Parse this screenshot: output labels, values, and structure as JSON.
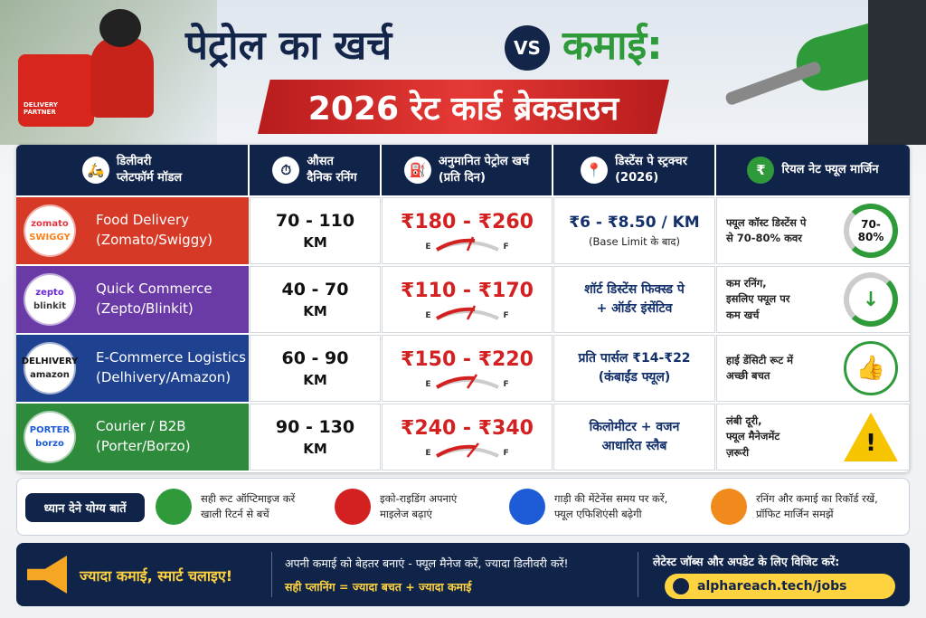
{
  "header": {
    "title_left": "पेट्रोल का खर्च",
    "vs": "VS",
    "title_right": "कमाई:",
    "subtitle": "2026 रेट कार्ड ब्रेकडाउन",
    "bag_label": "DELIVERY PARTNER"
  },
  "table": {
    "headers": [
      {
        "lines": [
          "डिलीवरी",
          "प्लेटफॉर्म मॉडल"
        ]
      },
      {
        "lines": [
          "औसत",
          "दैनिक रनिंग"
        ]
      },
      {
        "lines": [
          "अनुमानित पेट्रोल खर्च",
          "(प्रति दिन)"
        ]
      },
      {
        "lines": [
          "डिस्टेंस पे स्ट्रक्चर",
          "(2026)"
        ]
      },
      {
        "lines": [
          "रियल नेट फ्यूल मार्जिन"
        ]
      }
    ],
    "gauge_labels": [
      "E",
      "F"
    ],
    "rows": [
      {
        "logos": [
          "zomato",
          "SWIGGY"
        ],
        "category": "Food Delivery",
        "platforms": "(Zomato/Swiggy)",
        "running": [
          "70 - 110",
          "KM"
        ],
        "cost": "₹180 - ₹260",
        "pay": [
          "₹6 - ₹8.50 / KM",
          "(Base Limit के बाद)"
        ],
        "margin": [
          "फ्यूल कॉस्ट डिस्टेंस पे",
          "से 70-80% कवर"
        ],
        "badge": "70-80%"
      },
      {
        "logos": [
          "zepto",
          "blinkit"
        ],
        "category": "Quick Commerce",
        "platforms": "(Zepto/Blinkit)",
        "running": [
          "40 - 70",
          "KM"
        ],
        "cost": "₹110 - ₹170",
        "pay": [
          "शॉर्ट डिस्टेंस फिक्स्ड पे",
          "+ ऑर्डर इंसेंटिव"
        ],
        "margin": [
          "कम रनिंग,",
          "इसलिए फ्यूल पर",
          "कम खर्च"
        ]
      },
      {
        "logos": [
          "DELHIVERY",
          "amazon"
        ],
        "category": "E-Commerce Logistics",
        "platforms": "(Delhivery/Amazon)",
        "running": [
          "60 - 90",
          "KM"
        ],
        "cost": "₹150 - ₹220",
        "pay": [
          "प्रति पार्सल ₹14-₹22",
          "(कंबाईंड फ्यूल)"
        ],
        "margin": [
          "हाई डेंसिटी रूट में",
          "अच्छी बचत"
        ]
      },
      {
        "logos": [
          "PORTER",
          "borzo"
        ],
        "category": "Courier / B2B",
        "platforms": "(Porter/Borzo)",
        "running": [
          "90 - 130",
          "KM"
        ],
        "cost": "₹240 - ₹340",
        "pay": [
          "किलोमीटर + वजन",
          "आधारित स्लैब"
        ],
        "margin": [
          "लंबी दूरी,",
          "फ्यूल मैनेजमेंट",
          "ज़रूरी"
        ]
      }
    ]
  },
  "tips": {
    "label": "ध्यान देने योग्य बातें",
    "items": [
      {
        "lines": [
          "सही रूट ऑप्टिमाइज करें",
          "खाली रिटर्न से बचें"
        ]
      },
      {
        "lines": [
          "इको-राइडिंग अपनाएं",
          "माइलेज बढ़ाएं"
        ]
      },
      {
        "lines": [
          "गाड़ी की मेंटेनेंस समय पर करें,",
          "फ्यूल एफिशिएंसी बढ़ेगी"
        ]
      },
      {
        "lines": [
          "रनिंग और कमाई का रिकॉर्ड रखें,",
          "प्रॉफिट मार्जिन समझें"
        ]
      }
    ]
  },
  "footer": {
    "slogan": "ज्यादा कमाई, स्मार्ट चलाइए!",
    "message": "अपनी कमाई को बेहतर बनाएं - फ्यूल मैनेज करें, ज्यादा डिलीवरी करें!",
    "tagline": "सही प्लानिंग = ज्यादा बचत + ज्यादा कमाई",
    "visit": "लेटेस्ट जॉब्स और अपडेट के लिए विजिट करें:",
    "url": "alphareach.tech/jobs"
  }
}
